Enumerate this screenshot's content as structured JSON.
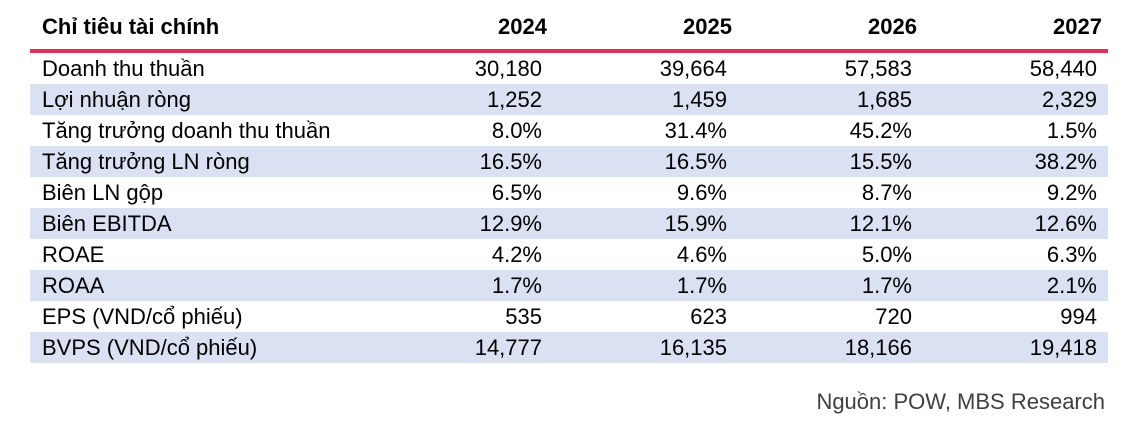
{
  "colors": {
    "header_rule": "#E4335A",
    "row_stripe": "#D9E1F2",
    "body_text": "#000000",
    "source_text": "#3F3F3F"
  },
  "table": {
    "header": {
      "label": "Chỉ tiêu tài chính",
      "years": [
        "2024",
        "2025",
        "2026",
        "2027"
      ]
    },
    "rows": [
      {
        "label": "Doanh thu thuần",
        "values": [
          "30,180",
          "39,664",
          "57,583",
          "58,440"
        ]
      },
      {
        "label": "Lợi nhuận ròng",
        "values": [
          "1,252",
          "1,459",
          "1,685",
          "2,329"
        ]
      },
      {
        "label": "Tăng trưởng doanh thu thuần",
        "values": [
          "8.0%",
          "31.4%",
          "45.2%",
          "1.5%"
        ]
      },
      {
        "label": "Tăng trưởng LN ròng",
        "values": [
          "16.5%",
          "16.5%",
          "15.5%",
          "38.2%"
        ]
      },
      {
        "label": "Biên LN gộp",
        "values": [
          "6.5%",
          "9.6%",
          "8.7%",
          "9.2%"
        ]
      },
      {
        "label": "Biên EBITDA",
        "values": [
          "12.9%",
          "15.9%",
          "12.1%",
          "12.6%"
        ]
      },
      {
        "label": "ROAE",
        "values": [
          "4.2%",
          "4.6%",
          "5.0%",
          "6.3%"
        ]
      },
      {
        "label": "ROAA",
        "values": [
          "1.7%",
          "1.7%",
          "1.7%",
          "2.1%"
        ]
      },
      {
        "label": "EPS (VND/cổ phiếu)",
        "values": [
          "535",
          "623",
          "720",
          "994"
        ]
      },
      {
        "label": "BVPS (VND/cổ phiếu)",
        "values": [
          "14,777",
          "16,135",
          "18,166",
          "19,418"
        ]
      }
    ]
  },
  "footer": {
    "source_note": "Nguồn: POW, MBS Research"
  },
  "chart_data": {
    "type": "table",
    "title": "Chỉ tiêu tài chính",
    "columns": [
      "Chỉ tiêu tài chính",
      "2024",
      "2025",
      "2026",
      "2027"
    ],
    "rows": [
      [
        "Doanh thu thuần",
        "30,180",
        "39,664",
        "57,583",
        "58,440"
      ],
      [
        "Lợi nhuận ròng",
        "1,252",
        "1,459",
        "1,685",
        "2,329"
      ],
      [
        "Tăng trưởng doanh thu thuần",
        "8.0%",
        "31.4%",
        "45.2%",
        "1.5%"
      ],
      [
        "Tăng trưởng LN ròng",
        "16.5%",
        "16.5%",
        "15.5%",
        "38.2%"
      ],
      [
        "Biên LN gộp",
        "6.5%",
        "9.6%",
        "8.7%",
        "9.2%"
      ],
      [
        "Biên EBITDA",
        "12.9%",
        "15.9%",
        "12.1%",
        "12.6%"
      ],
      [
        "ROAE",
        "4.2%",
        "4.6%",
        "5.0%",
        "6.3%"
      ],
      [
        "ROAA",
        "1.7%",
        "1.7%",
        "1.7%",
        "2.1%"
      ],
      [
        "EPS (VND/cổ phiếu)",
        "535",
        "623",
        "720",
        "994"
      ],
      [
        "BVPS (VND/cổ phiếu)",
        "14,777",
        "16,135",
        "18,166",
        "19,418"
      ]
    ],
    "source": "Nguồn: POW, MBS Research",
    "layout": {
      "striped_rows": [
        2,
        4,
        6,
        8,
        10
      ],
      "stripe_color": "#D9E1F2",
      "header_rule_color": "#E4335A"
    }
  }
}
